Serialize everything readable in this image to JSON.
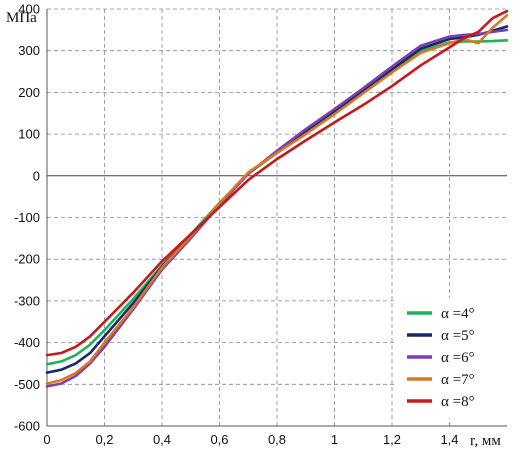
{
  "chart_data": {
    "type": "line",
    "ylabel": "МПа",
    "xlabel": "r, мм",
    "xlim": [
      0,
      1.6
    ],
    "ylim": [
      -600,
      400
    ],
    "x_ticks": [
      "0",
      "0,2",
      "0,4",
      "0,6",
      "0,8",
      "1",
      "1,2",
      "1,4"
    ],
    "y_ticks": [
      "400",
      "300",
      "200",
      "100",
      "0",
      "-100",
      "-200",
      "-300",
      "-400",
      "-500",
      "-600"
    ],
    "grid": true,
    "legend_position": "bottom-right",
    "series": [
      {
        "name": "α =4°",
        "color": "#1fb35a",
        "x": [
          0,
          0.05,
          0.1,
          0.15,
          0.2,
          0.3,
          0.4,
          0.5,
          0.6,
          0.7,
          0.8,
          0.9,
          1.0,
          1.1,
          1.2,
          1.3,
          1.4,
          1.45,
          1.5,
          1.55,
          1.6
        ],
        "y": [
          -452,
          -445,
          -430,
          -405,
          -370,
          -295,
          -215,
          -140,
          -65,
          5,
          55,
          105,
          150,
          200,
          250,
          300,
          320,
          322,
          322,
          323,
          325
        ]
      },
      {
        "name": "α =5°",
        "color": "#142a6b",
        "x": [
          0,
          0.05,
          0.1,
          0.15,
          0.2,
          0.3,
          0.4,
          0.5,
          0.6,
          0.7,
          0.8,
          0.9,
          1.0,
          1.1,
          1.2,
          1.3,
          1.4,
          1.45,
          1.5,
          1.55,
          1.6
        ],
        "y": [
          -472,
          -465,
          -450,
          -425,
          -385,
          -305,
          -218,
          -145,
          -68,
          5,
          58,
          108,
          155,
          205,
          255,
          305,
          328,
          332,
          338,
          348,
          358
        ]
      },
      {
        "name": "α =6°",
        "color": "#7e3fb0",
        "x": [
          0,
          0.05,
          0.1,
          0.15,
          0.2,
          0.3,
          0.4,
          0.5,
          0.6,
          0.7,
          0.8,
          0.9,
          1.0,
          1.1,
          1.2,
          1.3,
          1.4,
          1.45,
          1.5,
          1.55,
          1.6
        ],
        "y": [
          -505,
          -498,
          -480,
          -450,
          -410,
          -320,
          -225,
          -150,
          -70,
          5,
          60,
          112,
          160,
          210,
          262,
          312,
          334,
          338,
          340,
          345,
          350
        ]
      },
      {
        "name": "α =7°",
        "color": "#d87823",
        "x": [
          0,
          0.05,
          0.1,
          0.15,
          0.2,
          0.3,
          0.4,
          0.5,
          0.6,
          0.7,
          0.8,
          0.9,
          1.0,
          1.1,
          1.2,
          1.3,
          1.4,
          1.45,
          1.5,
          1.55,
          1.6
        ],
        "y": [
          -498,
          -490,
          -473,
          -445,
          -400,
          -315,
          -220,
          -145,
          -66,
          8,
          55,
          100,
          148,
          198,
          248,
          295,
          318,
          328,
          318,
          355,
          385
        ]
      },
      {
        "name": "α =8°",
        "color": "#c41a1f",
        "x": [
          0,
          0.05,
          0.1,
          0.15,
          0.2,
          0.3,
          0.4,
          0.5,
          0.6,
          0.7,
          0.8,
          0.9,
          1.0,
          1.1,
          1.2,
          1.3,
          1.4,
          1.45,
          1.5,
          1.55,
          1.6
        ],
        "y": [
          -430,
          -425,
          -410,
          -385,
          -350,
          -280,
          -205,
          -140,
          -75,
          -10,
          40,
          85,
          128,
          170,
          215,
          265,
          308,
          330,
          345,
          378,
          395
        ]
      }
    ]
  }
}
